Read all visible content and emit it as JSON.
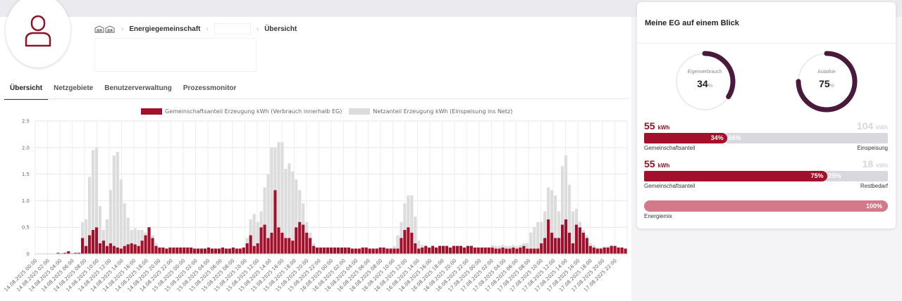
{
  "breadcrumb": {
    "section": "Energiegemeinschaft",
    "current": "Übersicht"
  },
  "tabs": [
    {
      "label": "Übersicht",
      "active": true
    },
    {
      "label": "Netzgebiete",
      "active": false
    },
    {
      "label": "Benutzerverwaltung",
      "active": false
    },
    {
      "label": "Prozessmonitor",
      "active": false
    }
  ],
  "colors": {
    "accent": "#8d1426",
    "community": "#a3102b",
    "grid": "#dcdcdc",
    "mix": "#d27a89",
    "gauge_ring": "#4a1a3d"
  },
  "icons": {
    "avatar": "user-icon",
    "home": "home-icon"
  },
  "chart_data": {
    "type": "bar",
    "stacked": true,
    "legend_position": "top",
    "grid": true,
    "ylim": [
      0,
      2.5
    ],
    "yticks": [
      "0",
      "0.5",
      "1.0",
      "1.5",
      "2.0",
      "2.5"
    ],
    "xticks": [
      "14.08.2025 00:00",
      "14.08.2025 02:00",
      "14.08.2025 04:00",
      "14.08.2025 06:00",
      "14.08.2025 08:00",
      "14.08.2025 10:00",
      "14.08.2025 12:00",
      "14.08.2025 14:00",
      "14.08.2025 16:00",
      "14.08.2025 18:00",
      "14.08.2025 20:00",
      "14.08.2025 22:00",
      "15.08.2025 00:00",
      "15.08.2025 02:00",
      "15.08.2025 04:00",
      "15.08.2025 06:00",
      "15.08.2025 08:00",
      "15.08.2025 10:00",
      "15.08.2025 12:00",
      "15.08.2025 14:00",
      "15.08.2025 16:00",
      "15.08.2025 18:00",
      "15.08.2025 20:00",
      "15.08.2025 22:00",
      "16.08.2025 00:00",
      "16.08.2025 02:00",
      "16.08.2025 04:00",
      "16.08.2025 06:00",
      "16.08.2025 08:00",
      "16.08.2025 10:00",
      "16.08.2025 12:00",
      "16.08.2025 14:00",
      "16.08.2025 16:00",
      "16.08.2025 18:00",
      "16.08.2025 20:00",
      "16.08.2025 22:00",
      "17.08.2025 00:00",
      "17.08.2025 02:00",
      "17.08.2025 04:00",
      "17.08.2025 06:00",
      "17.08.2025 08:00",
      "17.08.2025 10:00",
      "17.08.2025 12:00",
      "17.08.2025 14:00",
      "17.08.2025 16:00",
      "17.08.2025 18:00",
      "17.08.2025 20:00",
      "17.08.2025 22:00"
    ],
    "series": [
      {
        "name": "Gemeinschaftsanteil Erzeugung kWh (Verbrauch innerhalb EG)",
        "color": "#a3102b",
        "values": [
          0,
          0,
          0,
          0,
          0,
          0,
          0.02,
          0.01,
          0.02,
          0.05,
          0.01,
          0.02,
          0.02,
          0.3,
          0.15,
          0.35,
          0.45,
          0.5,
          0.2,
          0.25,
          0.15,
          0.2,
          0.15,
          0.12,
          0.1,
          0.15,
          0.18,
          0.2,
          0.18,
          0.15,
          0.25,
          0.35,
          0.5,
          0.3,
          0.15,
          0.12,
          0.12,
          0.1,
          0.12,
          0.12,
          0.12,
          0.12,
          0.12,
          0.12,
          0.12,
          0.1,
          0.1,
          0.1,
          0.1,
          0.12,
          0.1,
          0.1,
          0.1,
          0.12,
          0.1,
          0.1,
          0.12,
          0.1,
          0.1,
          0.12,
          0.2,
          0.35,
          0.15,
          0.2,
          0.5,
          0.55,
          0.3,
          0.4,
          1.2,
          0.5,
          0.4,
          0.3,
          0.3,
          0.25,
          0.5,
          0.6,
          0.55,
          0.4,
          0.3,
          0.15,
          0.12,
          0.12,
          0.12,
          0.12,
          0.12,
          0.12,
          0.12,
          0.12,
          0.12,
          0.12,
          0.1,
          0.1,
          0.1,
          0.12,
          0.12,
          0.1,
          0.1,
          0.1,
          0.12,
          0.12,
          0.1,
          0.1,
          0.1,
          0.1,
          0.3,
          0.45,
          0.5,
          0.4,
          0.2,
          0.1,
          0.12,
          0.15,
          0.12,
          0.15,
          0.12,
          0.15,
          0.15,
          0.15,
          0.12,
          0.15,
          0.15,
          0.15,
          0.12,
          0.15,
          0.15,
          0.12,
          0.12,
          0.12,
          0.12,
          0.12,
          0.12,
          0.1,
          0.1,
          0.12,
          0.1,
          0.1,
          0.12,
          0.1,
          0.12,
          0.15,
          0.1,
          0.1,
          0.1,
          0.1,
          0.2,
          0.3,
          0.65,
          0.4,
          0.3,
          0.3,
          0.55,
          0.65,
          0.4,
          0.2,
          0.55,
          0.5,
          0.4,
          0.3,
          0.15,
          0.12,
          0.1,
          0.1,
          0.12,
          0.12,
          0.15,
          0.15,
          0.12,
          0.12,
          0.1
        ]
      },
      {
        "name": "Netzanteil Erzeugung kWh (Einspeisung ins Netz)",
        "color": "#dcdcdc",
        "values": [
          0,
          0,
          0,
          0,
          0,
          0,
          0,
          0,
          0,
          0,
          0,
          0,
          0,
          0.3,
          0.5,
          1.1,
          1.5,
          1.5,
          0.7,
          0.2,
          0.5,
          1.0,
          1.7,
          1.8,
          1.3,
          0.8,
          0.5,
          0.25,
          0.3,
          0.3,
          0.2,
          0.05,
          0,
          0.05,
          0.05,
          0,
          0,
          0,
          0,
          0,
          0,
          0,
          0,
          0,
          0,
          0,
          0,
          0,
          0,
          0,
          0,
          0,
          0,
          0,
          0,
          0,
          0,
          0,
          0,
          0,
          0.1,
          0.3,
          0.6,
          0.4,
          0.3,
          0.7,
          1.2,
          1.6,
          0.8,
          1.6,
          1.7,
          1.3,
          1.4,
          1.3,
          0.9,
          0.6,
          0.4,
          0.2,
          0.1,
          0.05,
          0,
          0,
          0,
          0,
          0,
          0,
          0,
          0,
          0,
          0,
          0,
          0,
          0,
          0,
          0,
          0,
          0,
          0,
          0,
          0,
          0,
          0,
          0.05,
          0.25,
          0.3,
          0.5,
          0.6,
          0.7,
          0.5,
          0.15,
          0.05,
          0,
          0,
          0,
          0,
          0,
          0,
          0,
          0,
          0,
          0,
          0,
          0,
          0,
          0,
          0,
          0,
          0,
          0,
          0,
          0.05,
          0.05,
          0.05,
          0.05,
          0.05,
          0.05,
          0.05,
          0.05,
          0.05,
          0.05,
          0.1,
          0.3,
          0.4,
          0.5,
          0.4,
          0.5,
          0.6,
          0.8,
          0.8,
          0.5,
          1.1,
          1.2,
          0.9,
          0.6,
          0.3,
          0.1,
          0.05,
          0.05,
          0.05,
          0.05,
          0.02,
          0.02,
          0.02,
          0.02,
          0.02
        ]
      }
    ]
  },
  "card": {
    "title": "Meine EG auf einem Blick",
    "eigenverbrauch": {
      "label": "Eigenverbrauch",
      "value": 34,
      "display": "34",
      "unit": "%"
    },
    "autarkie": {
      "label": "Autarkie",
      "value": 75,
      "display": "75",
      "unit": "%"
    },
    "stat1": {
      "left_value": "55",
      "left_unit": "kWh",
      "right_value": "104",
      "right_unit": "kWh",
      "pct_a": 34,
      "pct_a_label": "34%",
      "pct_b_label": "66%",
      "left_label": "Gemeinschaftsanteil",
      "right_label": "Einspeisung"
    },
    "stat2": {
      "left_value": "55",
      "left_unit": "kWh",
      "right_value": "18",
      "right_unit": "kWh",
      "pct_a": 75,
      "pct_a_label": "75%",
      "pct_b_label": "25%",
      "left_label": "Gemeinschaftsanteil",
      "right_label": "Restbedarf"
    },
    "mix": {
      "pct": 100,
      "pct_label": "100%",
      "label": "Energiemix"
    }
  }
}
